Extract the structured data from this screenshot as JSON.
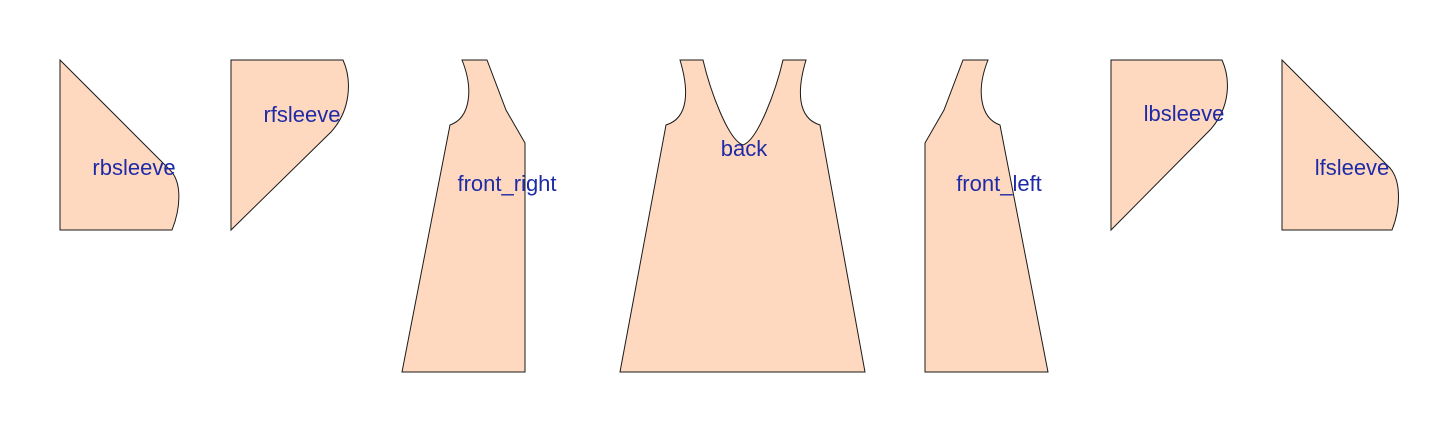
{
  "colors": {
    "background": "#ffffff",
    "piece_fill": "#FED9C0",
    "piece_outline": "#1a1a1a",
    "label_text": "#1F2BA6"
  },
  "pieces": [
    {
      "id": "rbsleeve",
      "label": "rbsleeve"
    },
    {
      "id": "rfsleeve",
      "label": "rfsleeve"
    },
    {
      "id": "front_right",
      "label": "front_right"
    },
    {
      "id": "back",
      "label": "back"
    },
    {
      "id": "front_left",
      "label": "front_left"
    },
    {
      "id": "lbsleeve",
      "label": "lbsleeve"
    },
    {
      "id": "lfsleeve",
      "label": "lfsleeve"
    }
  ]
}
